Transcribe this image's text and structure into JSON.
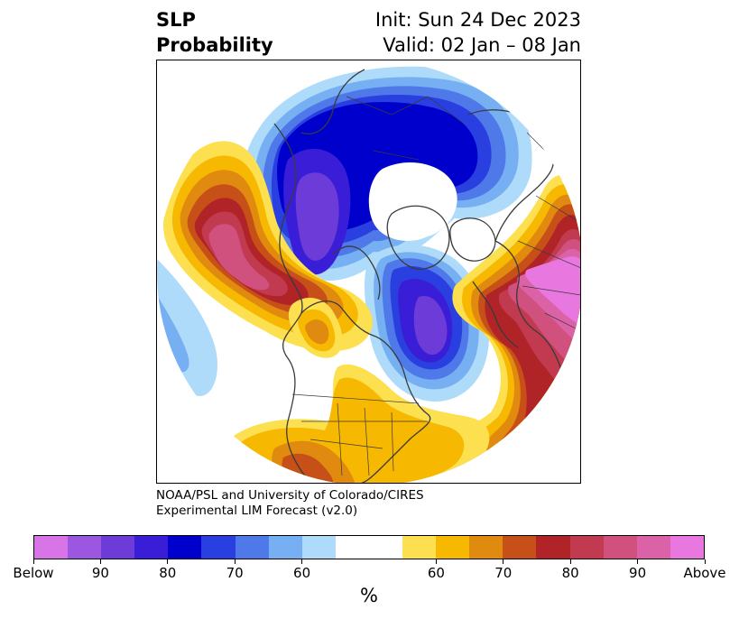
{
  "title": {
    "left_line1": "SLP",
    "left_line2": "Probability",
    "right_line1": "Init: Sun 24 Dec 2023",
    "right_line2": "Valid: 02 Jan – 08 Jan"
  },
  "credit": {
    "line1": "NOAA/PSL and University of Colorado/CIRES",
    "line2": "Experimental LIM Forecast (v2.0)"
  },
  "colorbar": {
    "unit": "%",
    "colors": [
      "#d874e8",
      "#9b57e0",
      "#6c3bd8",
      "#3a1dd6",
      "#0000cc",
      "#2a3fdf",
      "#4f79e8",
      "#76b0f2",
      "#aedbf9",
      "#ffffff",
      "#ffffff",
      "#fde050",
      "#f6b800",
      "#e08a10",
      "#c75018",
      "#b02428",
      "#c23a50",
      "#d0517e",
      "#dc62a8",
      "#e878e0"
    ],
    "tick_labels": [
      "Below",
      "90",
      "80",
      "70",
      "60",
      "60",
      "70",
      "80",
      "90",
      "Above"
    ]
  },
  "map": {
    "projection": "north-polar-stereographic",
    "colors": {
      "white": "#ffffff",
      "pale_blue": "#aedbf9",
      "light_blue": "#76b0f2",
      "mid_blue": "#4f79e8",
      "blue": "#2a3fdf",
      "deep_blue": "#0000cc",
      "indigo": "#3a1dd6",
      "violet": "#6c3bd8",
      "yellow": "#fde050",
      "gold": "#f6b800",
      "orange": "#e08a10",
      "dark_orange": "#c75018",
      "red": "#b02428",
      "crimson": "#c23a50",
      "rose": "#d0517e",
      "pink": "#dc62a8",
      "magenta": "#e878e0",
      "coast": "#3a3a3a"
    }
  }
}
